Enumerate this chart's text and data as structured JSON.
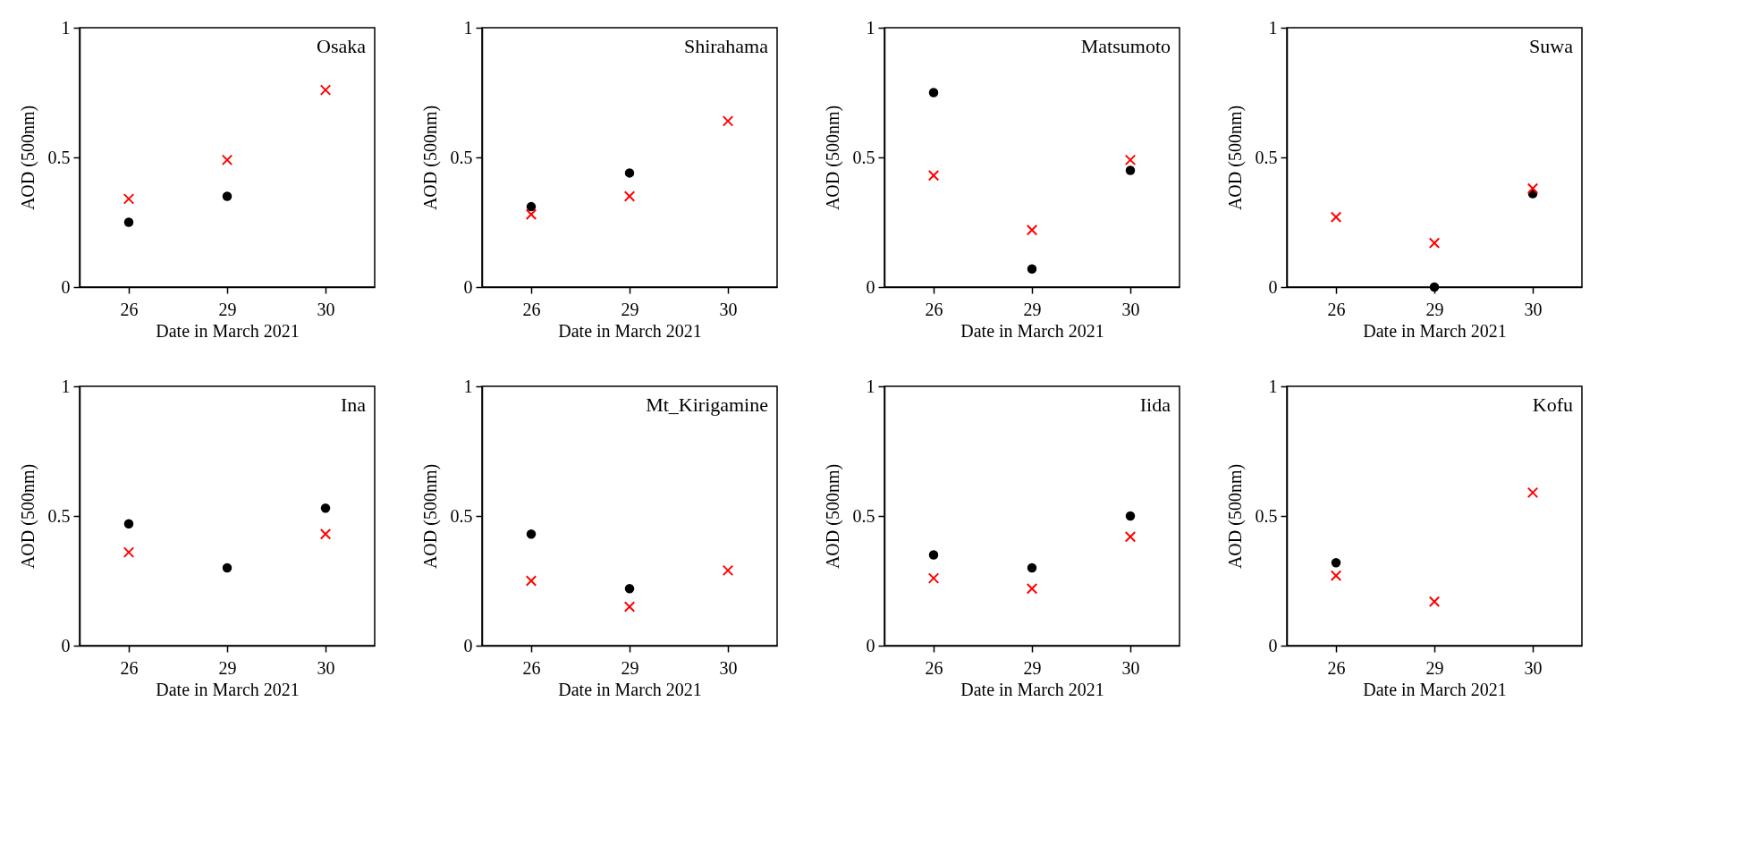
{
  "chart_data": [
    {
      "type": "scatter",
      "title": "Osaka",
      "xlabel": "Date in March 2021",
      "ylabel": "AOD (500nm)",
      "categories": [
        "26",
        "29",
        "30"
      ],
      "ylim": [
        0,
        1
      ],
      "yticks": [
        0,
        0.5,
        1
      ],
      "grid": false,
      "series": [
        {
          "color": "#000000",
          "marker": "circle",
          "values": [
            0.25,
            0.35,
            null
          ]
        },
        {
          "color": "#ff0000",
          "marker": "cross",
          "values": [
            0.34,
            0.49,
            0.76
          ]
        }
      ]
    },
    {
      "type": "scatter",
      "title": "Shirahama",
      "xlabel": "Date in March 2021",
      "ylabel": "AOD (500nm)",
      "categories": [
        "26",
        "29",
        "30"
      ],
      "ylim": [
        0,
        1
      ],
      "yticks": [
        0,
        0.5,
        1
      ],
      "grid": false,
      "series": [
        {
          "color": "#000000",
          "marker": "circle",
          "values": [
            0.31,
            0.44,
            null
          ]
        },
        {
          "color": "#ff0000",
          "marker": "cross",
          "values": [
            0.28,
            0.35,
            0.64
          ]
        }
      ]
    },
    {
      "type": "scatter",
      "title": "Matsumoto",
      "xlabel": "Date in March 2021",
      "ylabel": "AOD (500nm)",
      "categories": [
        "26",
        "29",
        "30"
      ],
      "ylim": [
        0,
        1
      ],
      "yticks": [
        0,
        0.5,
        1
      ],
      "grid": false,
      "series": [
        {
          "color": "#000000",
          "marker": "circle",
          "values": [
            0.75,
            0.07,
            0.45
          ]
        },
        {
          "color": "#ff0000",
          "marker": "cross",
          "values": [
            0.43,
            0.22,
            0.49
          ]
        }
      ]
    },
    {
      "type": "scatter",
      "title": "Suwa",
      "xlabel": "Date in March 2021",
      "ylabel": "AOD (500nm)",
      "categories": [
        "26",
        "29",
        "30"
      ],
      "ylim": [
        0,
        1
      ],
      "yticks": [
        0,
        0.5,
        1
      ],
      "grid": false,
      "series": [
        {
          "color": "#000000",
          "marker": "circle",
          "values": [
            null,
            0.0,
            0.36
          ]
        },
        {
          "color": "#ff0000",
          "marker": "cross",
          "values": [
            0.27,
            0.17,
            0.38
          ]
        }
      ]
    },
    {
      "type": "scatter",
      "title": "Ina",
      "xlabel": "Date in March 2021",
      "ylabel": "AOD (500nm)",
      "categories": [
        "26",
        "29",
        "30"
      ],
      "ylim": [
        0,
        1
      ],
      "yticks": [
        0,
        0.5,
        1
      ],
      "grid": false,
      "series": [
        {
          "color": "#000000",
          "marker": "circle",
          "values": [
            0.47,
            0.3,
            0.53
          ]
        },
        {
          "color": "#ff0000",
          "marker": "cross",
          "values": [
            0.36,
            null,
            0.43
          ]
        }
      ]
    },
    {
      "type": "scatter",
      "title": "Mt_Kirigamine",
      "xlabel": "Date in March 2021",
      "ylabel": "AOD (500nm)",
      "categories": [
        "26",
        "29",
        "30"
      ],
      "ylim": [
        0,
        1
      ],
      "yticks": [
        0,
        0.5,
        1
      ],
      "grid": false,
      "series": [
        {
          "color": "#000000",
          "marker": "circle",
          "values": [
            0.43,
            0.22,
            null
          ]
        },
        {
          "color": "#ff0000",
          "marker": "cross",
          "values": [
            0.25,
            0.15,
            0.29
          ]
        }
      ]
    },
    {
      "type": "scatter",
      "title": "Iida",
      "xlabel": "Date in March 2021",
      "ylabel": "AOD (500nm)",
      "categories": [
        "26",
        "29",
        "30"
      ],
      "ylim": [
        0,
        1
      ],
      "yticks": [
        0,
        0.5,
        1
      ],
      "grid": false,
      "series": [
        {
          "color": "#000000",
          "marker": "circle",
          "values": [
            0.35,
            0.3,
            0.5
          ]
        },
        {
          "color": "#ff0000",
          "marker": "cross",
          "values": [
            0.26,
            0.22,
            0.42
          ]
        }
      ]
    },
    {
      "type": "scatter",
      "title": "Kofu",
      "xlabel": "Date in March 2021",
      "ylabel": "AOD (500nm)",
      "categories": [
        "26",
        "29",
        "30"
      ],
      "ylim": [
        0,
        1
      ],
      "yticks": [
        0,
        0.5,
        1
      ],
      "grid": false,
      "series": [
        {
          "color": "#000000",
          "marker": "circle",
          "values": [
            0.32,
            null,
            null
          ]
        },
        {
          "color": "#ff0000",
          "marker": "cross",
          "values": [
            0.27,
            0.17,
            0.59
          ]
        }
      ]
    }
  ]
}
